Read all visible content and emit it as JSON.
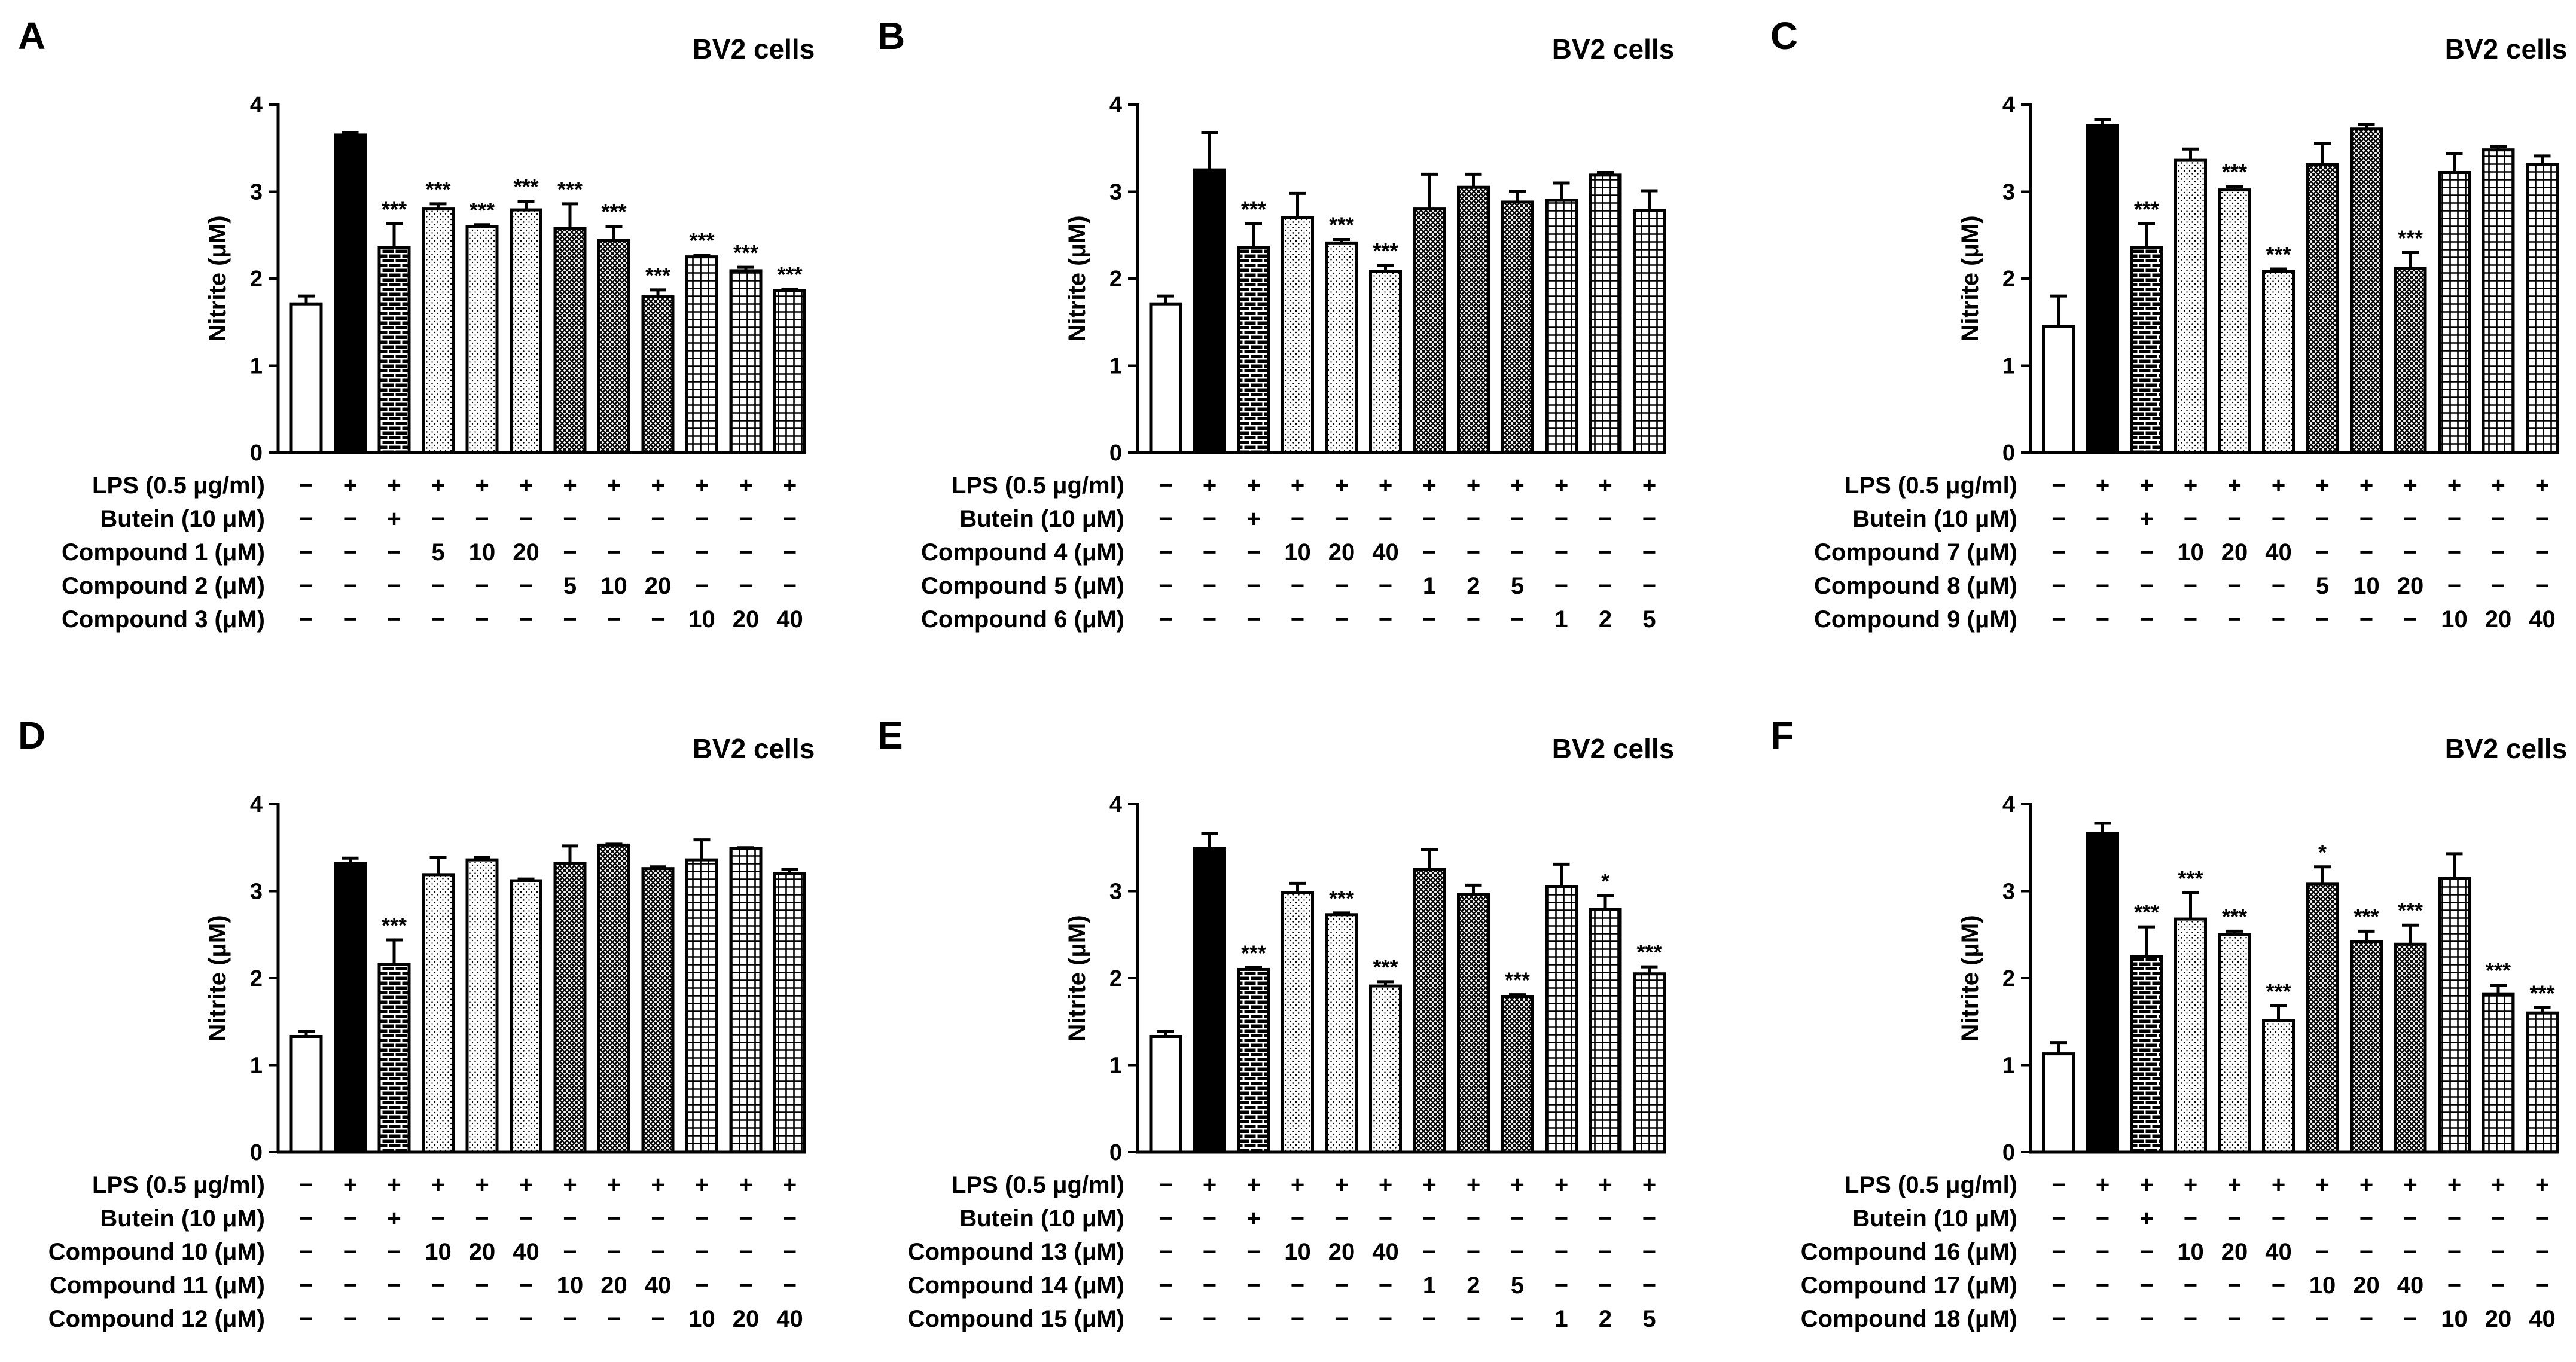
{
  "unit_label": "Nitrite (μM)",
  "colors": {
    "ink": "#000000",
    "paper": "#ffffff"
  },
  "chart_data": [
    {
      "type": "bar",
      "letter": "A",
      "title": "BV2 cells",
      "ylabel": "Nitrite (μM)",
      "ylim": [
        0,
        4
      ],
      "yticks": [
        "0",
        "1",
        "2",
        "3",
        "4"
      ],
      "grid": false,
      "values": [
        1.71,
        3.65,
        2.36,
        2.8,
        2.6,
        2.79,
        2.58,
        2.44,
        1.79,
        2.25,
        2.09,
        1.86
      ],
      "errors": [
        0.09,
        0.03,
        0.27,
        0.06,
        0.02,
        0.1,
        0.28,
        0.16,
        0.08,
        0.02,
        0.04,
        0.02
      ],
      "significance": [
        "",
        "",
        "***",
        "***",
        "***",
        "***",
        "***",
        "***",
        "***",
        "***",
        "***",
        "***"
      ],
      "patterns": [
        "open",
        "solid",
        "brick",
        "dots",
        "dots",
        "dots",
        "cross",
        "cross",
        "cross",
        "grid",
        "grid",
        "grid"
      ],
      "conditions": [
        {
          "label": "LPS (0.5 μg/ml)",
          "values": [
            "−",
            "+",
            "+",
            "+",
            "+",
            "+",
            "+",
            "+",
            "+",
            "+",
            "+",
            "+"
          ]
        },
        {
          "label": "Butein (10 μM)",
          "values": [
            "−",
            "−",
            "+",
            "−",
            "−",
            "−",
            "−",
            "−",
            "−",
            "−",
            "−",
            "−"
          ]
        },
        {
          "label": "Compound 1 (μM)",
          "values": [
            "−",
            "−",
            "−",
            "5",
            "10",
            "20",
            "−",
            "−",
            "−",
            "−",
            "−",
            "−"
          ]
        },
        {
          "label": "Compound 2 (μM)",
          "values": [
            "−",
            "−",
            "−",
            "−",
            "−",
            "−",
            "5",
            "10",
            "20",
            "−",
            "−",
            "−"
          ]
        },
        {
          "label": "Compound 3 (μM)",
          "values": [
            "−",
            "−",
            "−",
            "−",
            "−",
            "−",
            "−",
            "−",
            "−",
            "10",
            "20",
            "40"
          ]
        }
      ]
    },
    {
      "type": "bar",
      "letter": "B",
      "title": "BV2 cells",
      "ylabel": "Nitrite (μM)",
      "ylim": [
        0,
        4
      ],
      "yticks": [
        "0",
        "1",
        "2",
        "3",
        "4"
      ],
      "grid": false,
      "values": [
        1.71,
        3.25,
        2.36,
        2.7,
        2.41,
        2.08,
        2.8,
        3.05,
        2.88,
        2.9,
        3.19,
        2.78
      ],
      "errors": [
        0.09,
        0.43,
        0.27,
        0.28,
        0.04,
        0.07,
        0.4,
        0.15,
        0.12,
        0.2,
        0.03,
        0.23
      ],
      "significance": [
        "",
        "",
        "***",
        "",
        "***",
        "***",
        "",
        "",
        "",
        "",
        "",
        ""
      ],
      "patterns": [
        "open",
        "solid",
        "brick",
        "dots",
        "dots",
        "dots",
        "cross",
        "cross",
        "cross",
        "grid",
        "grid",
        "grid"
      ],
      "conditions": [
        {
          "label": "LPS (0.5 μg/ml)",
          "values": [
            "−",
            "+",
            "+",
            "+",
            "+",
            "+",
            "+",
            "+",
            "+",
            "+",
            "+",
            "+"
          ]
        },
        {
          "label": "Butein (10 μM)",
          "values": [
            "−",
            "−",
            "+",
            "−",
            "−",
            "−",
            "−",
            "−",
            "−",
            "−",
            "−",
            "−"
          ]
        },
        {
          "label": "Compound 4 (μM)",
          "values": [
            "−",
            "−",
            "−",
            "10",
            "20",
            "40",
            "−",
            "−",
            "−",
            "−",
            "−",
            "−"
          ]
        },
        {
          "label": "Compound 5 (μM)",
          "values": [
            "−",
            "−",
            "−",
            "−",
            "−",
            "−",
            "1",
            "2",
            "5",
            "−",
            "−",
            "−"
          ]
        },
        {
          "label": "Compound 6 (μM)",
          "values": [
            "−",
            "−",
            "−",
            "−",
            "−",
            "−",
            "−",
            "−",
            "−",
            "1",
            "2",
            "5"
          ]
        }
      ]
    },
    {
      "type": "bar",
      "letter": "C",
      "title": "BV2 cells",
      "ylabel": "Nitrite (μM)",
      "ylim": [
        0,
        4
      ],
      "yticks": [
        "0",
        "1",
        "2",
        "3",
        "4"
      ],
      "grid": false,
      "values": [
        1.45,
        3.76,
        2.36,
        3.36,
        3.02,
        2.08,
        3.31,
        3.72,
        2.12,
        3.22,
        3.48,
        3.31
      ],
      "errors": [
        0.35,
        0.07,
        0.27,
        0.13,
        0.04,
        0.03,
        0.24,
        0.05,
        0.18,
        0.22,
        0.04,
        0.1
      ],
      "significance": [
        "",
        "",
        "***",
        "",
        "***",
        "***",
        "",
        "",
        "***",
        "",
        "",
        ""
      ],
      "patterns": [
        "open",
        "solid",
        "brick",
        "dots",
        "dots",
        "dots",
        "cross",
        "cross",
        "cross",
        "grid",
        "grid",
        "grid"
      ],
      "conditions": [
        {
          "label": "LPS (0.5 μg/ml)",
          "values": [
            "−",
            "+",
            "+",
            "+",
            "+",
            "+",
            "+",
            "+",
            "+",
            "+",
            "+",
            "+"
          ]
        },
        {
          "label": "Butein (10 μM)",
          "values": [
            "−",
            "−",
            "+",
            "−",
            "−",
            "−",
            "−",
            "−",
            "−",
            "−",
            "−",
            "−"
          ]
        },
        {
          "label": "Compound 7 (μM)",
          "values": [
            "−",
            "−",
            "−",
            "10",
            "20",
            "40",
            "−",
            "−",
            "−",
            "−",
            "−",
            "−"
          ]
        },
        {
          "label": "Compound 8 (μM)",
          "values": [
            "−",
            "−",
            "−",
            "−",
            "−",
            "−",
            "5",
            "10",
            "20",
            "−",
            "−",
            "−"
          ]
        },
        {
          "label": "Compound 9 (μM)",
          "values": [
            "−",
            "−",
            "−",
            "−",
            "−",
            "−",
            "−",
            "−",
            "−",
            "10",
            "20",
            "40"
          ]
        }
      ]
    },
    {
      "type": "bar",
      "letter": "D",
      "title": "BV2 cells",
      "ylabel": "Nitrite (μM)",
      "ylim": [
        0,
        4
      ],
      "yticks": [
        "0",
        "1",
        "2",
        "3",
        "4"
      ],
      "grid": false,
      "values": [
        1.33,
        3.32,
        2.16,
        3.19,
        3.36,
        3.12,
        3.32,
        3.53,
        3.26,
        3.36,
        3.49,
        3.2
      ],
      "errors": [
        0.06,
        0.06,
        0.28,
        0.2,
        0.03,
        0.02,
        0.2,
        0.01,
        0.02,
        0.23,
        0.01,
        0.05
      ],
      "significance": [
        "",
        "",
        "***",
        "",
        "",
        "",
        "",
        "",
        "",
        "",
        "",
        ""
      ],
      "patterns": [
        "open",
        "solid",
        "brick",
        "dots",
        "dots",
        "dots",
        "cross",
        "cross",
        "cross",
        "grid",
        "grid",
        "grid"
      ],
      "conditions": [
        {
          "label": "LPS (0.5 μg/ml)",
          "values": [
            "−",
            "+",
            "+",
            "+",
            "+",
            "+",
            "+",
            "+",
            "+",
            "+",
            "+",
            "+"
          ]
        },
        {
          "label": "Butein (10 μM)",
          "values": [
            "−",
            "−",
            "+",
            "−",
            "−",
            "−",
            "−",
            "−",
            "−",
            "−",
            "−",
            "−"
          ]
        },
        {
          "label": "Compound 10 (μM)",
          "values": [
            "−",
            "−",
            "−",
            "10",
            "20",
            "40",
            "−",
            "−",
            "−",
            "−",
            "−",
            "−"
          ]
        },
        {
          "label": "Compound 11 (μM)",
          "values": [
            "−",
            "−",
            "−",
            "−",
            "−",
            "−",
            "10",
            "20",
            "40",
            "−",
            "−",
            "−"
          ]
        },
        {
          "label": "Compound 12 (μM)",
          "values": [
            "−",
            "−",
            "−",
            "−",
            "−",
            "−",
            "−",
            "−",
            "−",
            "10",
            "20",
            "40"
          ]
        }
      ]
    },
    {
      "type": "bar",
      "letter": "E",
      "title": "BV2 cells",
      "ylabel": "Nitrite (μM)",
      "ylim": [
        0,
        4
      ],
      "yticks": [
        "0",
        "1",
        "2",
        "3",
        "4"
      ],
      "grid": false,
      "values": [
        1.33,
        3.49,
        2.1,
        2.98,
        2.73,
        1.91,
        3.25,
        2.96,
        1.79,
        3.05,
        2.79,
        2.05
      ],
      "errors": [
        0.06,
        0.17,
        0.02,
        0.11,
        0.02,
        0.05,
        0.23,
        0.11,
        0.02,
        0.26,
        0.16,
        0.08
      ],
      "significance": [
        "",
        "",
        "***",
        "",
        "***",
        "***",
        "",
        "",
        "***",
        "",
        "*",
        "***"
      ],
      "patterns": [
        "open",
        "solid",
        "brick",
        "dots",
        "dots",
        "dots",
        "cross",
        "cross",
        "cross",
        "grid",
        "grid",
        "grid"
      ],
      "conditions": [
        {
          "label": "LPS (0.5 μg/ml)",
          "values": [
            "−",
            "+",
            "+",
            "+",
            "+",
            "+",
            "+",
            "+",
            "+",
            "+",
            "+",
            "+"
          ]
        },
        {
          "label": "Butein (10 μM)",
          "values": [
            "−",
            "−",
            "+",
            "−",
            "−",
            "−",
            "−",
            "−",
            "−",
            "−",
            "−",
            "−"
          ]
        },
        {
          "label": "Compound 13 (μM)",
          "values": [
            "−",
            "−",
            "−",
            "10",
            "20",
            "40",
            "−",
            "−",
            "−",
            "−",
            "−",
            "−"
          ]
        },
        {
          "label": "Compound 14 (μM)",
          "values": [
            "−",
            "−",
            "−",
            "−",
            "−",
            "−",
            "1",
            "2",
            "5",
            "−",
            "−",
            "−"
          ]
        },
        {
          "label": "Compound 15 (μM)",
          "values": [
            "−",
            "−",
            "−",
            "−",
            "−",
            "−",
            "−",
            "−",
            "−",
            "1",
            "2",
            "5"
          ]
        }
      ]
    },
    {
      "type": "bar",
      "letter": "F",
      "title": "BV2 cells",
      "ylabel": "Nitrite (μM)",
      "ylim": [
        0,
        4
      ],
      "yticks": [
        "0",
        "1",
        "2",
        "3",
        "4"
      ],
      "grid": false,
      "values": [
        1.13,
        3.66,
        2.25,
        2.68,
        2.5,
        1.51,
        3.08,
        2.42,
        2.39,
        3.15,
        1.82,
        1.6
      ],
      "errors": [
        0.13,
        0.12,
        0.34,
        0.3,
        0.04,
        0.17,
        0.2,
        0.12,
        0.22,
        0.28,
        0.1,
        0.06
      ],
      "significance": [
        "",
        "",
        "***",
        "***",
        "***",
        "***",
        "*",
        "***",
        "***",
        "",
        "***",
        "***"
      ],
      "patterns": [
        "open",
        "solid",
        "brick",
        "dots",
        "dots",
        "dots",
        "cross",
        "cross",
        "cross",
        "grid",
        "grid",
        "grid"
      ],
      "conditions": [
        {
          "label": "LPS (0.5 μg/ml)",
          "values": [
            "−",
            "+",
            "+",
            "+",
            "+",
            "+",
            "+",
            "+",
            "+",
            "+",
            "+",
            "+"
          ]
        },
        {
          "label": "Butein (10 μM)",
          "values": [
            "−",
            "−",
            "+",
            "−",
            "−",
            "−",
            "−",
            "−",
            "−",
            "−",
            "−",
            "−"
          ]
        },
        {
          "label": "Compound 16 (μM)",
          "values": [
            "−",
            "−",
            "−",
            "10",
            "20",
            "40",
            "−",
            "−",
            "−",
            "−",
            "−",
            "−"
          ]
        },
        {
          "label": "Compound 17 (μM)",
          "values": [
            "−",
            "−",
            "−",
            "−",
            "−",
            "−",
            "10",
            "20",
            "40",
            "−",
            "−",
            "−"
          ]
        },
        {
          "label": "Compound 18 (μM)",
          "values": [
            "−",
            "−",
            "−",
            "−",
            "−",
            "−",
            "−",
            "−",
            "−",
            "10",
            "20",
            "40"
          ]
        }
      ]
    }
  ]
}
